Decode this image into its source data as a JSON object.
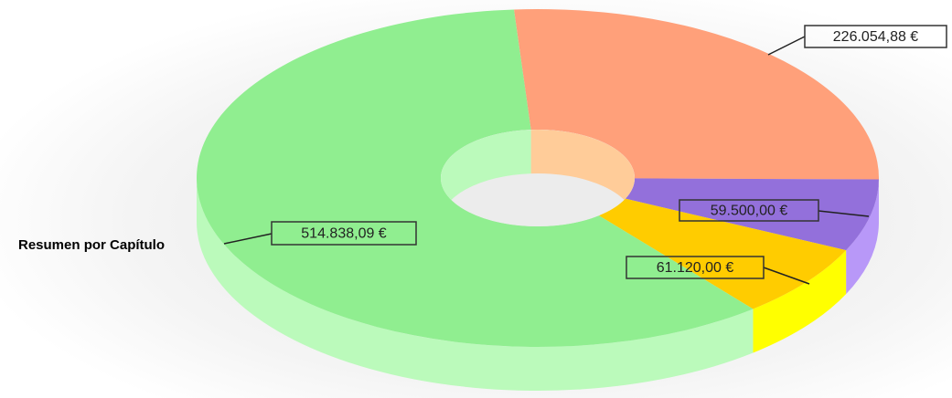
{
  "chart_data": {
    "type": "pie",
    "donut": true,
    "three_d": true,
    "title": "Resumen por Capítulo",
    "values": [
      226054.88,
      59500.0,
      61120.0,
      514838.09
    ],
    "value_labels": [
      "226.054,88 €",
      "59.500,00 €",
      "61.120,00 €",
      "514.838,09 €"
    ],
    "colors": [
      "#FFA07A",
      "#9370DB",
      "#FFCC00",
      "#90EE90"
    ],
    "side_colors": [
      "#FFCC99",
      "#B898F8",
      "#FFFF00",
      "#BBFABB"
    ]
  }
}
